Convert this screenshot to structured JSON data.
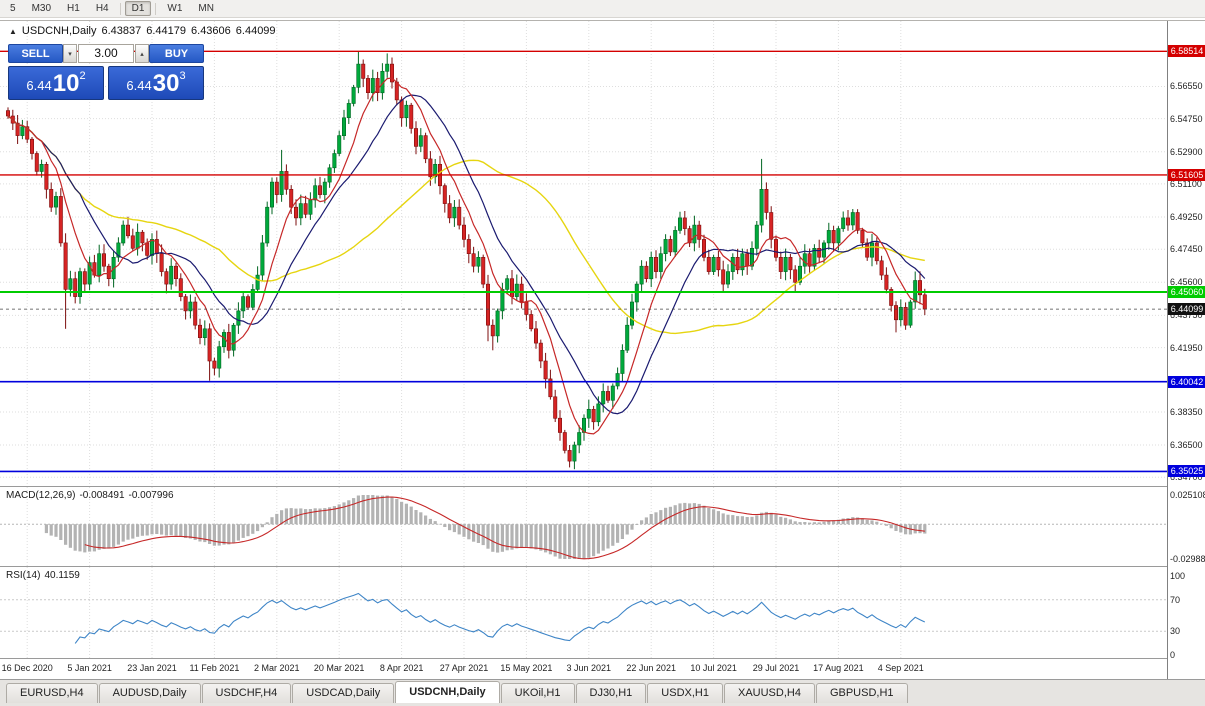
{
  "toolbar": {
    "periods": [
      "5",
      "M30",
      "H1",
      "H4",
      "D1",
      "W1",
      "MN"
    ],
    "active_period": "D1"
  },
  "chart": {
    "symbol_label": "USDCNH,Daily",
    "ohlc": {
      "open": "6.43837",
      "high": "6.44179",
      "low": "6.43606",
      "close": "6.44099"
    },
    "trade_panel": {
      "sell_label": "SELL",
      "buy_label": "BUY",
      "volume": "3.00",
      "sell_price_small": "6.44",
      "sell_price_big": "10",
      "sell_price_sup": "2",
      "buy_price_small": "6.44",
      "buy_price_big": "30",
      "buy_price_sup": "3"
    },
    "levels": [
      {
        "label": "6.58514",
        "price": 6.58514,
        "color": "#d40000",
        "width": 1.4
      },
      {
        "label": "6.51605",
        "price": 6.51605,
        "color": "#d40000",
        "width": 1.4
      },
      {
        "label": "6.45060",
        "price": 6.4506,
        "color": "#00cc00",
        "width": 2
      },
      {
        "label": "6.40042",
        "price": 6.40042,
        "color": "#0000dd",
        "width": 1.6
      },
      {
        "label": "6.35025",
        "price": 6.35025,
        "color": "#0000dd",
        "width": 1.6
      }
    ],
    "current_price": {
      "label": "6.44099",
      "price": 6.44099,
      "color": "#111111"
    },
    "price_axis_ticks": [
      "6.56550",
      "6.54750",
      "6.52900",
      "6.51100",
      "6.49250",
      "6.47450",
      "6.45600",
      "6.43750",
      "6.41950",
      "6.38350",
      "6.36500",
      "6.34700"
    ],
    "date_labels": [
      "16 Dec 2020",
      "5 Jan 2021",
      "23 Jan 2021",
      "11 Feb 2021",
      "2 Mar 2021",
      "20 Mar 2021",
      "8 Apr 2021",
      "27 Apr 2021",
      "15 May 2021",
      "3 Jun 2021",
      "22 Jun 2021",
      "10 Jul 2021",
      "29 Jul 2021",
      "17 Aug 2021",
      "4 Sep 2021"
    ]
  },
  "macd": {
    "label": "MACD(12,26,9)",
    "value": "-0.008491",
    "signal_value": "-0.007996",
    "axis_max": "0.025108",
    "axis_min": "-0.029888"
  },
  "rsi": {
    "label": "RSI(14)",
    "value": "40.1159",
    "axis_labels": [
      "100",
      "70",
      "30",
      "0"
    ]
  },
  "tabs": {
    "items": [
      "EURUSD,H4",
      "AUDUSD,Daily",
      "USDCHF,H4",
      "USDCAD,Daily",
      "USDCNH,Daily",
      "UKOil,H1",
      "DJ30,H1",
      "USDX,H1",
      "XAUUSD,H4",
      "GBPUSD,H1"
    ],
    "active": "USDCNH,Daily"
  },
  "colors": {
    "candle_up": "#00a93c",
    "candle_up_stroke": "#006622",
    "candle_down": "#d62424",
    "candle_down_stroke": "#7c0e0e",
    "ma_fast": "#c62828",
    "ma_mid": "#1b1b70",
    "ma_slow": "#e6d510",
    "macd_hist": "#b3b3b3",
    "macd_signal": "#c62828",
    "rsi_line": "#3e85c7",
    "grid": "#dedede"
  },
  "chart_data": {
    "type": "candlestick",
    "symbol": "USDCNH",
    "timeframe": "Daily",
    "first_open": 6.552,
    "closes": [
      6.549,
      6.545,
      6.538,
      6.543,
      6.536,
      6.528,
      6.518,
      6.522,
      6.508,
      6.498,
      6.504,
      6.478,
      6.452,
      6.458,
      6.448,
      6.462,
      6.455,
      6.467,
      6.46,
      6.472,
      6.465,
      6.458,
      6.47,
      6.478,
      6.488,
      6.482,
      6.475,
      6.484,
      6.478,
      6.471,
      6.48,
      6.472,
      6.462,
      6.455,
      6.465,
      6.458,
      6.448,
      6.44,
      6.445,
      6.432,
      6.425,
      6.43,
      6.412,
      6.408,
      6.42,
      6.428,
      6.418,
      6.432,
      6.44,
      6.448,
      6.442,
      6.452,
      6.46,
      6.478,
      6.498,
      6.512,
      6.505,
      6.518,
      6.508,
      6.498,
      6.492,
      6.5,
      6.494,
      6.502,
      6.51,
      6.505,
      6.512,
      6.52,
      6.528,
      6.538,
      6.548,
      6.556,
      6.565,
      6.578,
      6.57,
      6.562,
      6.57,
      6.562,
      6.574,
      6.578,
      6.568,
      6.558,
      6.548,
      6.555,
      6.542,
      6.532,
      6.538,
      6.525,
      6.515,
      6.522,
      6.51,
      6.5,
      6.492,
      6.498,
      6.488,
      6.48,
      6.472,
      6.465,
      6.47,
      6.455,
      6.432,
      6.426,
      6.44,
      6.452,
      6.458,
      6.448,
      6.455,
      6.445,
      6.438,
      6.43,
      6.422,
      6.412,
      6.402,
      6.392,
      6.38,
      6.372,
      6.362,
      6.356,
      6.365,
      6.372,
      6.38,
      6.385,
      6.378,
      6.388,
      6.395,
      6.39,
      6.398,
      6.405,
      6.418,
      6.432,
      6.445,
      6.455,
      6.465,
      6.458,
      6.47,
      6.462,
      6.472,
      6.48,
      6.473,
      6.485,
      6.492,
      6.486,
      6.478,
      6.488,
      6.48,
      6.47,
      6.462,
      6.47,
      6.463,
      6.455,
      6.462,
      6.47,
      6.463,
      6.472,
      6.465,
      6.475,
      6.488,
      6.508,
      6.495,
      6.48,
      6.47,
      6.462,
      6.47,
      6.463,
      6.456,
      6.465,
      6.472,
      6.465,
      6.475,
      6.47,
      6.478,
      6.485,
      6.478,
      6.486,
      6.492,
      6.488,
      6.495,
      6.485,
      6.478,
      6.47,
      6.478,
      6.468,
      6.46,
      6.452,
      6.443,
      6.435,
      6.442,
      6.432,
      6.445,
      6.457,
      6.449,
      6.441
    ],
    "wick_overrides": {
      "12": {
        "low": 6.43
      },
      "42": {
        "low": 6.401
      },
      "43": {
        "low": 6.404
      },
      "57": {
        "high": 6.53
      },
      "73": {
        "high": 6.5851
      },
      "79": {
        "high": 6.584
      },
      "100": {
        "low": 6.423
      },
      "101": {
        "low": 6.418
      },
      "117": {
        "low": 6.3525
      },
      "157": {
        "high": 6.525
      },
      "185": {
        "low": 6.428
      }
    },
    "date_label_bars": [
      4,
      17,
      30,
      43,
      56,
      69,
      82,
      95,
      108,
      121,
      134,
      147,
      160,
      173,
      186
    ],
    "price_range": {
      "top": 6.6021,
      "bottom": 6.3421
    },
    "macd_scale": {
      "max": 0.025108,
      "min": -0.029888
    },
    "rsi_scale": {
      "max": 100,
      "min": 0,
      "levels": [
        70,
        30
      ]
    }
  }
}
